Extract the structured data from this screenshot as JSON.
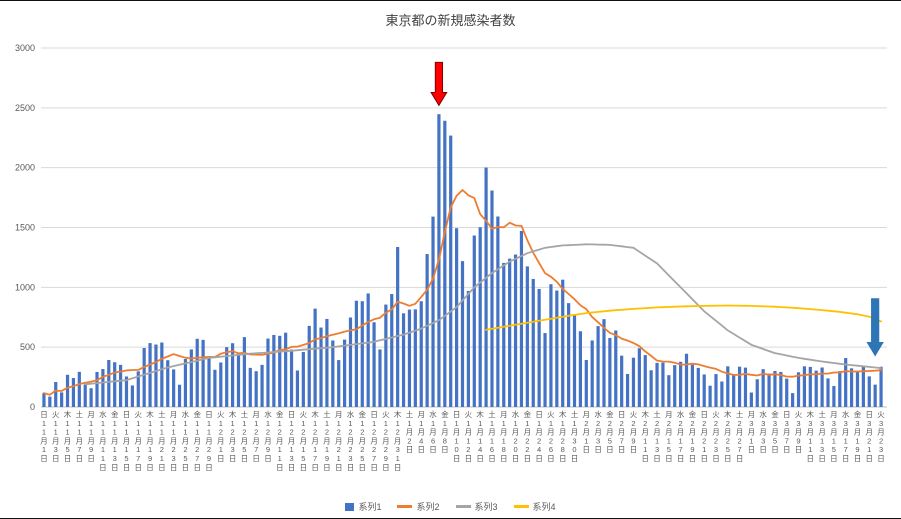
{
  "chart_data": {
    "type": "combo",
    "title": "東京都の新規感染者数",
    "ylim": [
      0,
      3000
    ],
    "yticks": [
      0,
      500,
      1000,
      1500,
      2000,
      2500,
      3000
    ],
    "grid_color": "#D9D9D9",
    "axis_line_color": "#BFBFBF",
    "axis_text_color": "#595959",
    "title_color": "#404040",
    "tick_interval_days": 2,
    "weekday_chars": [
      "日",
      "月",
      "火",
      "水",
      "木",
      "金",
      "土"
    ],
    "month_suffix": "月",
    "day_suffix": "日",
    "x_months": [
      {
        "month": 11,
        "days": 30
      },
      {
        "month": 12,
        "days": 31
      },
      {
        "month": 1,
        "days": 31
      },
      {
        "month": 2,
        "days": 28
      },
      {
        "month": 3,
        "days": 23
      }
    ],
    "series": [
      {
        "name": "系列1",
        "type": "bar",
        "color": "#4472C4",
        "values": [
          116,
          87,
          209,
          122,
          269,
          242,
          294,
          189,
          157,
          293,
          317,
          393,
          374,
          352,
          255,
          180,
          298,
          493,
          534,
          522,
          539,
          391,
          314,
          186,
          401,
          481,
          570,
          561,
          418,
          311,
          372,
          500,
          533,
          449,
          584,
          327,
          299,
          352,
          572,
          602,
          595,
          621,
          480,
          305,
          460,
          678,
          822,
          664,
          736,
          556,
          392,
          563,
          748,
          888,
          884,
          949,
          708,
          481,
          856,
          944,
          1337,
          783,
          814,
          816,
          884,
          1278,
          1591,
          2447,
          2392,
          2268,
          1494,
          1219,
          970,
          1433,
          1502,
          2001,
          1809,
          1592,
          1204,
          1240,
          1274,
          1471,
          1175,
          1070,
          986,
          618,
          1026,
          973,
          1064,
          868,
          769,
          633,
          393,
          556,
          676,
          734,
          577,
          639,
          429,
          276,
          412,
          491,
          434,
          307,
          369,
          371,
          266,
          350,
          378,
          445,
          353,
          327,
          272,
          178,
          275,
          213,
          340,
          270,
          337,
          329,
          121,
          232,
          316,
          279,
          301,
          293,
          237,
          116,
          290,
          340,
          335,
          304,
          330,
          239,
          175,
          300,
          409,
          323,
          303,
          342,
          256,
          187,
          337
        ]
      },
      {
        "name": "系列2",
        "type": "line",
        "color": "#ED7D31",
        "values": [
          116,
          102,
          137,
          134,
          161,
          174,
          191,
          202,
          212,
          224,
          252,
          269,
          288,
          296,
          306,
          309,
          310,
          335,
          355,
          376,
          403,
          422,
          442,
          426,
          412,
          405,
          412,
          415,
          419,
          418,
          445,
          459,
          466,
          449,
          452,
          439,
          438,
          435,
          445,
          455,
          476,
          481,
          503,
          504,
          519,
          534,
          566,
          576,
          592,
          603,
          615,
          630,
          640,
          650,
          681,
          711,
          733,
          746,
          788,
          816,
          880,
          865,
          846,
          862,
          919,
          979,
          1072,
          1230,
          1460,
          1668,
          1765,
          1813,
          1769,
          1746,
          1611,
          1555,
          1490,
          1504,
          1502,
          1540,
          1517,
          1513,
          1395,
          1289,
          1203,
          1119,
          1089,
          1046,
          987,
          944,
          901,
          850,
          818,
          751,
          708,
          661,
          620,
          601,
          572,
          555,
          535,
          508,
          465,
          427,
          388,
          380,
          379,
          370,
          354,
          355,
          362,
          356,
          342,
          329,
          318,
          295,
          280,
          268,
          269,
          277,
          269,
          263,
          278,
          269,
          274,
          267,
          254,
          253,
          262,
          265,
          273,
          274,
          279,
          279,
          288,
          289,
          299,
          297,
          297,
          299,
          301,
          303,
          308
        ]
      },
      {
        "name": "系列3",
        "type": "line",
        "color": "#A5A5A5",
        "anchors": [
          [
            7,
            190
          ],
          [
            14,
            225
          ],
          [
            21,
            330
          ],
          [
            28,
            410
          ],
          [
            35,
            445
          ],
          [
            42,
            470
          ],
          [
            49,
            500
          ],
          [
            56,
            545
          ],
          [
            61,
            605
          ],
          [
            64,
            655
          ],
          [
            67,
            725
          ],
          [
            70,
            835
          ],
          [
            73,
            1000
          ],
          [
            76,
            1120
          ],
          [
            79,
            1215
          ],
          [
            82,
            1285
          ],
          [
            85,
            1330
          ],
          [
            88,
            1350
          ],
          [
            92,
            1360
          ],
          [
            96,
            1355
          ],
          [
            100,
            1330
          ],
          [
            104,
            1200
          ],
          [
            108,
            1000
          ],
          [
            112,
            800
          ],
          [
            116,
            640
          ],
          [
            120,
            520
          ],
          [
            124,
            450
          ],
          [
            128,
            410
          ],
          [
            132,
            380
          ],
          [
            136,
            355
          ],
          [
            139,
            340
          ],
          [
            142,
            325
          ]
        ]
      },
      {
        "name": "系列4",
        "type": "line",
        "color": "#FFC000",
        "anchors": [
          [
            75,
            645
          ],
          [
            78,
            670
          ],
          [
            81,
            695
          ],
          [
            84,
            720
          ],
          [
            88,
            755
          ],
          [
            92,
            785
          ],
          [
            96,
            805
          ],
          [
            100,
            820
          ],
          [
            104,
            832
          ],
          [
            108,
            840
          ],
          [
            112,
            845
          ],
          [
            116,
            848
          ],
          [
            120,
            845
          ],
          [
            124,
            838
          ],
          [
            128,
            826
          ],
          [
            132,
            810
          ],
          [
            135,
            795
          ],
          [
            138,
            775
          ],
          [
            140,
            755
          ],
          [
            142,
            715
          ]
        ]
      }
    ],
    "annotations": [
      {
        "name": "red-arrow",
        "shape": "down-arrow",
        "day_index": 67,
        "fill": "#FF0000",
        "stroke": "#7F0000",
        "tail_value": 2880,
        "tip_value": 2520
      },
      {
        "name": "blue-arrow",
        "shape": "down-arrow",
        "day_index": 141,
        "fill": "#2E75B6",
        "stroke": "#2E75B6",
        "tail_value": 905,
        "tip_value": 430
      }
    ],
    "legend_position": "bottom"
  }
}
